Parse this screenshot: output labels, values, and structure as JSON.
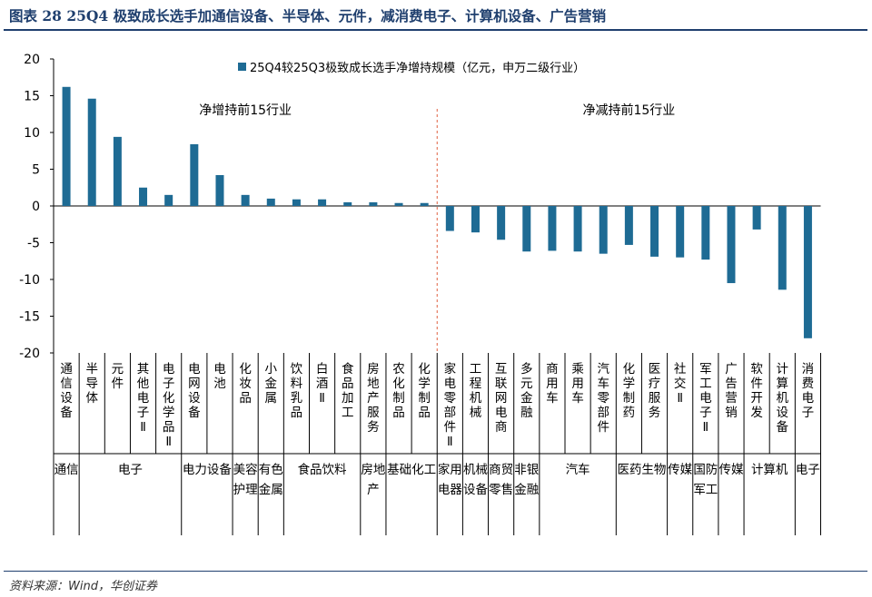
{
  "figure": {
    "title": "图表 28   25Q4 极致成长选手加通信设备、半导体、元件，减消费电子、计算机设备、广告营销",
    "source": "资料来源：Wind，华创证券"
  },
  "colors": {
    "bar": "#1E6B94",
    "divider": "#E06040",
    "axis": "#000000",
    "title": "#1F3F6E"
  },
  "chart_data": {
    "type": "bar",
    "ylim": [
      -20,
      20
    ],
    "yticks": [
      "20",
      "15",
      "10",
      "5",
      "0",
      "-5",
      "-10",
      "-15",
      "-20"
    ],
    "legend": "25Q4较25Q3极致成长选手净增持规模（亿元，申万二级行业）",
    "annotations": {
      "left": "净增持前15行业",
      "right": "净减持前15行业"
    },
    "categories": [
      "通信设备",
      "半导体",
      "元件",
      "其他电子Ⅱ",
      "电子化学品Ⅱ",
      "电网设备",
      "电池",
      "化妆品",
      "小金属",
      "饮料乳品",
      "白酒Ⅱ",
      "食品加工",
      "房地产服务",
      "农化制品",
      "化学制品",
      "家电零部件Ⅱ",
      "工程机械",
      "互联网电商",
      "多元金融",
      "商用车",
      "乘用车",
      "汽车零部件",
      "化学制药",
      "医疗服务",
      "社交Ⅱ",
      "军工电子Ⅱ",
      "广告营销",
      "软件开发",
      "计算机设备",
      "消费电子"
    ],
    "values": [
      16.2,
      14.6,
      9.4,
      2.5,
      1.5,
      8.4,
      4.2,
      1.5,
      1.0,
      0.9,
      0.9,
      0.5,
      0.5,
      0.4,
      0.4,
      -3.4,
      -3.6,
      -4.6,
      -6.2,
      -6.1,
      -6.2,
      -6.5,
      -5.3,
      -6.9,
      -7.0,
      -7.3,
      -10.5,
      -3.2,
      -11.4,
      -18.0
    ],
    "level1": [
      {
        "label": "通信",
        "count": 1
      },
      {
        "label": "电子",
        "count": 4
      },
      {
        "label": "电力设备",
        "count": 2
      },
      {
        "label": "美容护理",
        "count": 1
      },
      {
        "label": "有色金属",
        "count": 1
      },
      {
        "label": "食品饮料",
        "count": 3
      },
      {
        "label": "房地产",
        "count": 1
      },
      {
        "label": "基础化工",
        "count": 2
      },
      {
        "label": "家用电器",
        "count": 1
      },
      {
        "label": "机械设备",
        "count": 1
      },
      {
        "label": "商贸零售",
        "count": 1
      },
      {
        "label": "非银金融",
        "count": 1
      },
      {
        "label": "汽车",
        "count": 3
      },
      {
        "label": "医药生物",
        "count": 2
      },
      {
        "label": "传媒",
        "count": 1
      },
      {
        "label": "国防军工",
        "count": 1
      },
      {
        "label": "传媒",
        "count": 1
      },
      {
        "label": "计算机",
        "count": 2
      },
      {
        "label": "电子",
        "count": 1
      }
    ]
  }
}
